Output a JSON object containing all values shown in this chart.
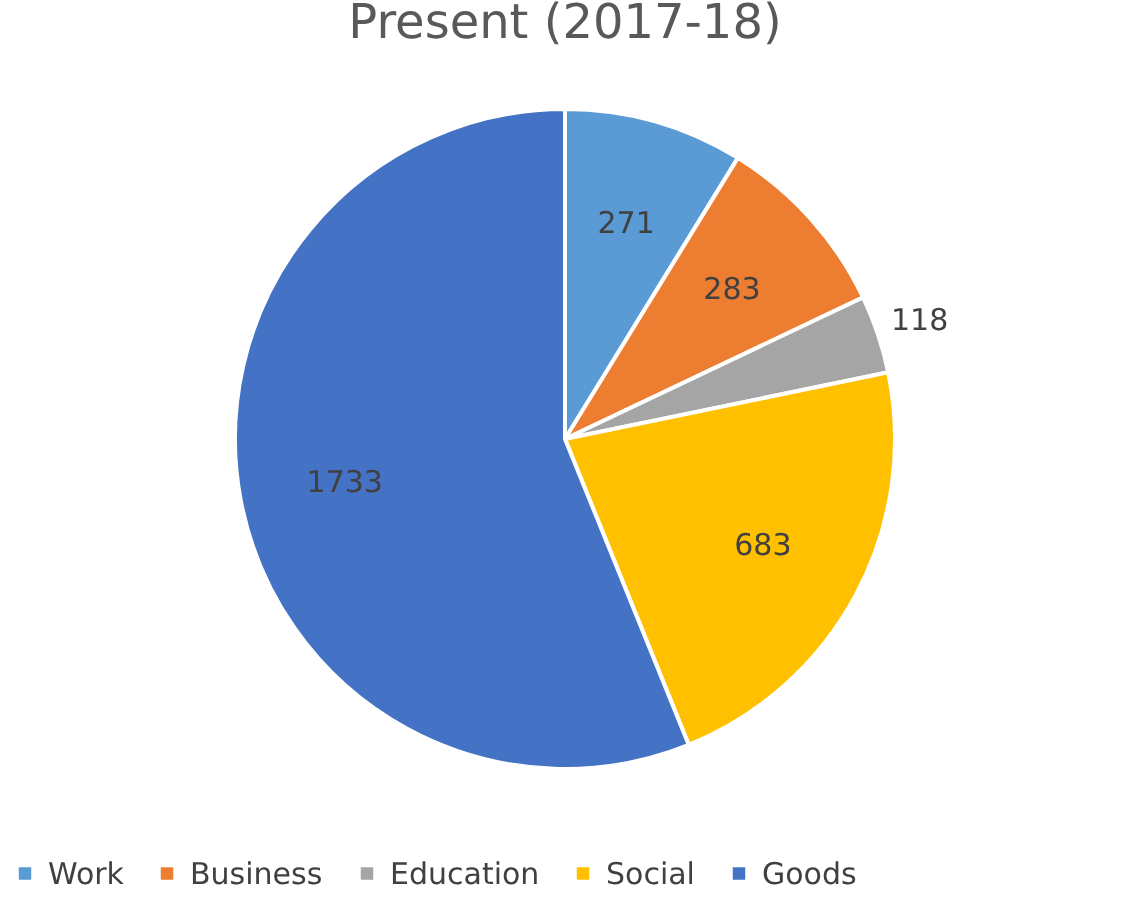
{
  "chart_data": {
    "type": "pie",
    "title": "Present (2017-18)",
    "categories": [
      "Work",
      "Business",
      "Education",
      "Social",
      "Goods"
    ],
    "values": [
      271,
      283,
      118,
      683,
      1733
    ],
    "colors": [
      "#5b9bd5",
      "#ed7d31",
      "#a5a5a5",
      "#ffc000",
      "#4472c4"
    ],
    "data_labels": true,
    "legend": "bottom"
  }
}
